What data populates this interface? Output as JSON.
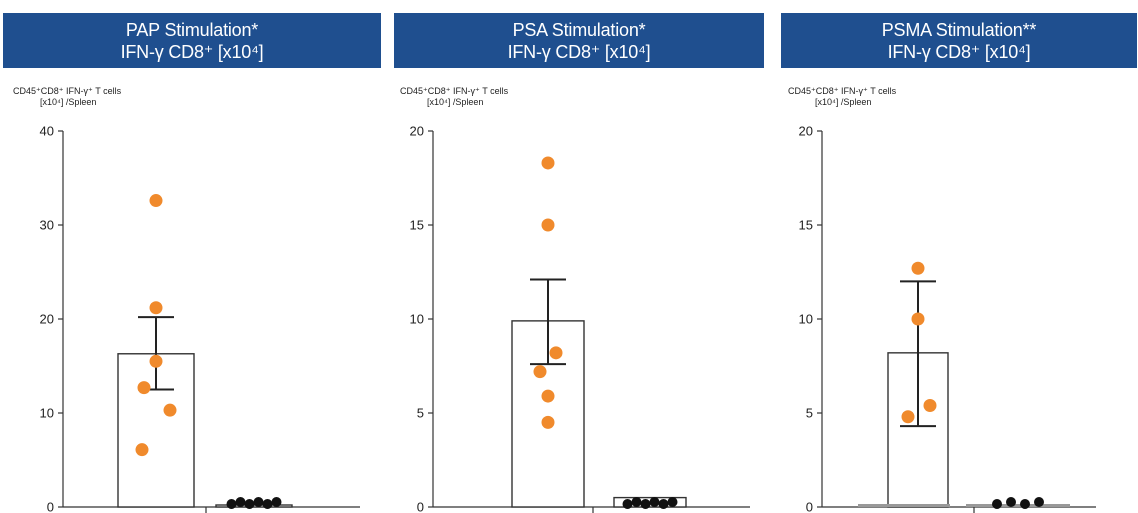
{
  "colors": {
    "header_bg": "#1f4f8f",
    "header_text": "#ffffff",
    "orange": "#f08a2c",
    "black": "#111111",
    "axis": "#333333",
    "baseline_bar": "#999999"
  },
  "chart_data": [
    {
      "type": "bar",
      "title": "PAP Stimulation*",
      "subtitle": "IFN-γ CD8⁺ [x10⁴]",
      "ylabel_line1": "CD45⁺CD8⁺ IFN-γ⁺ T cells",
      "ylabel_line2": "[x10⁴] /Spleen",
      "ylim": [
        0,
        40
      ],
      "yticks": [
        0,
        10,
        20,
        30,
        40
      ],
      "categories": [
        "",
        ""
      ],
      "bars": [
        {
          "value": 16.3,
          "err_low": 12.5,
          "err_high": 20.2,
          "points": [
            32.6,
            21.2,
            15.5,
            12.7,
            10.3,
            6.1
          ],
          "point_color": "orange"
        },
        {
          "value": 0.2,
          "err_low": null,
          "err_high": null,
          "points": [
            0.2,
            0.4,
            0.1,
            0.3,
            0.2,
            0.3
          ],
          "point_color": "black"
        }
      ]
    },
    {
      "type": "bar",
      "title": "PSA Stimulation*",
      "subtitle": "IFN-γ CD8⁺ [x10⁴]",
      "ylabel_line1": "CD45⁺CD8⁺ IFN-γ⁺ T cells",
      "ylabel_line2": "[x10⁴] /Spleen",
      "ylim": [
        0,
        20
      ],
      "yticks": [
        0,
        5,
        10,
        15,
        20
      ],
      "categories": [
        "",
        ""
      ],
      "bars": [
        {
          "value": 9.9,
          "err_low": 7.6,
          "err_high": 12.1,
          "points": [
            18.3,
            15.0,
            8.2,
            7.2,
            5.9,
            4.5
          ],
          "point_color": "orange"
        },
        {
          "value": 0.5,
          "err_low": null,
          "err_high": null,
          "points": [
            0.5,
            0.7,
            0.3,
            0.6,
            0.8,
            0.4
          ],
          "point_color": "black"
        }
      ]
    },
    {
      "type": "bar",
      "title": "PSMA Stimulation**",
      "subtitle": "IFN-γ CD8⁺ [x10⁴]",
      "ylabel_line1": "CD45⁺CD8⁺ IFN-γ⁺ T cells",
      "ylabel_line2": "[x10⁴] /Spleen",
      "ylim": [
        0,
        20
      ],
      "yticks": [
        0,
        5,
        10,
        15,
        20
      ],
      "categories": [
        "",
        ""
      ],
      "bars": [
        {
          "value": 8.2,
          "err_low": 4.3,
          "err_high": 12.0,
          "points": [
            12.7,
            10.0,
            5.4,
            4.8
          ],
          "point_color": "orange"
        },
        {
          "value": 0.1,
          "err_low": null,
          "err_high": null,
          "points": [
            0.0,
            0.0,
            0.0,
            0.0
          ],
          "point_color": "black"
        }
      ]
    }
  ]
}
